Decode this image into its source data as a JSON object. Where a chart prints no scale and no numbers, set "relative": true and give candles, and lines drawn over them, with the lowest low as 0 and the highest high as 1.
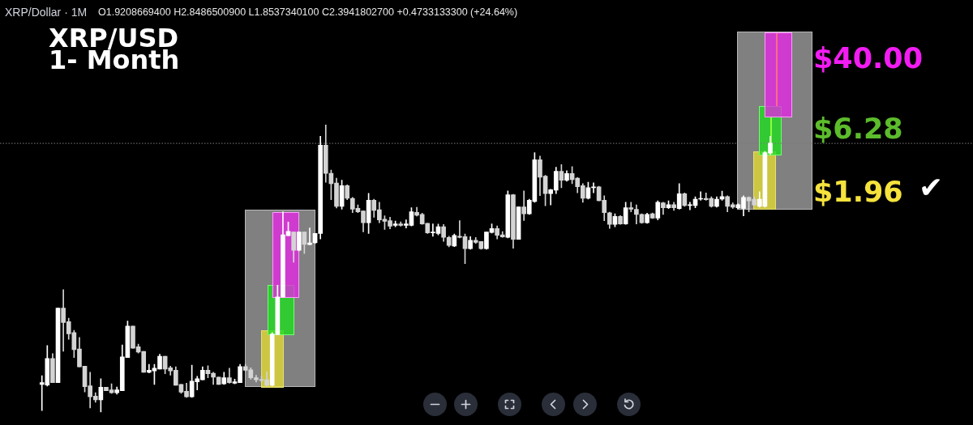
{
  "chart_data": {
    "type": "candlestick",
    "title": "XRP/USD",
    "subtitle": "1- Month",
    "annotations": [
      "XRP/Dollar · 1M",
      "O1.9208669400 H2.8486500900 L1.8537340100 C2.3941802700 +0.4733133300 (+24.64%)",
      "$40.00",
      "$6.28",
      "$1.96",
      "✔"
    ],
    "relative": true,
    "ref_lines": [
      {
        "axis": "y",
        "value": 0.935,
        "color": "#7a7a7a",
        "line_style": "dotted"
      }
    ],
    "categories": [
      null,
      null,
      null,
      null,
      null,
      null,
      null,
      null,
      null,
      null,
      null,
      null,
      null,
      null,
      null,
      null,
      null,
      null,
      null,
      null,
      null,
      null,
      null,
      null,
      null,
      null,
      null,
      null,
      null,
      null,
      null,
      null,
      null,
      null,
      null,
      null,
      null,
      null,
      null,
      null,
      null,
      null,
      null,
      null,
      null,
      null,
      null,
      null,
      null,
      null,
      null,
      null,
      null,
      null,
      null,
      null,
      null,
      null,
      null,
      null,
      null,
      null,
      null,
      null,
      null,
      null,
      null,
      null,
      null,
      null,
      null,
      null,
      null,
      null,
      null,
      null,
      null,
      null,
      null,
      null,
      null,
      null,
      null,
      null,
      null,
      null,
      null,
      null,
      null,
      null,
      null,
      null,
      null,
      null,
      null,
      null,
      null,
      null,
      null,
      null,
      null,
      null,
      null,
      null,
      null,
      null,
      null,
      null,
      null,
      null,
      null,
      null,
      null,
      null,
      null,
      null,
      null,
      null,
      null,
      null,
      null,
      null,
      null,
      null,
      null,
      null,
      null,
      null,
      null,
      null,
      null,
      null,
      null,
      null,
      null,
      null,
      null
    ],
    "colors": [
      "#ffffff",
      "#ffffff",
      "#d4d4d4",
      "#ffffff",
      "#d4d4d4",
      "#d4d4d4",
      "#d4d4d4",
      "#d4d4d4",
      "#d4d4d4",
      "#d4d4d4",
      "#d4d4d4",
      "#ffffff",
      "#d4d4d4",
      "#d4d4d4",
      "#ffffff",
      "#ffffff",
      "#ffffff",
      "#d4d4d4",
      "#d4d4d4",
      "#d4d4d4",
      "#ffffff",
      "#ffffff",
      "#ffffff",
      "#d4d4d4",
      "#d4d4d4",
      "#d4d4d4",
      "#d4d4d4",
      "#d4d4d4",
      "#ffffff",
      "#ffffff",
      "#ffffff",
      "#d4d4d4",
      "#d4d4d4",
      "#d4d4d4",
      "#ffffff",
      "#d4d4d4",
      "#ffffff",
      "#ffffff",
      "#d4d4d4",
      "#d4d4d4",
      "#d4d4d4",
      "#d4d4d4",
      "#d4d4d4",
      "#ffffff",
      "#ffffff",
      "#ffffff",
      "#ffffff",
      "#d4d4d4",
      "#ffffff",
      "#d4d4d4",
      "#ffffff",
      "#ffffff",
      "#ffffff",
      "#d4d4d4",
      "#d4d4d4",
      "#d4d4d4",
      "#ffffff",
      "#d4d4d4",
      "#d4d4d4",
      "#d4d4d4",
      "#d4d4d4",
      "#ffffff",
      "#d4d4d4",
      "#d4d4d4",
      "#d4d4d4",
      "#d4d4d4",
      "#ffffff",
      "#d4d4d4",
      "#ffffff",
      "#ffffff",
      "#d4d4d4",
      "#d4d4d4",
      "#d4d4d4",
      "#ffffff",
      "#ffffff",
      "#d4d4d4",
      "#d4d4d4",
      "#ffffff",
      "#d4d4d4",
      "#d4d4d4",
      "#ffffff",
      "#d4d4d4",
      "#d4d4d4",
      "#ffffff",
      "#ffffff",
      "#d4d4d4",
      "#d4d4d4",
      "#ffffff",
      "#d4d4d4",
      "#ffffff",
      "#d4d4d4",
      "#ffffff",
      "#ffffff",
      "#d4d4d4",
      "#d4d4d4",
      "#ffffff",
      "#ffffff",
      "#d4d4d4",
      "#ffffff",
      "#d4d4d4",
      "#d4d4d4",
      "#d4d4d4",
      "#ffffff",
      "#ffffff",
      "#d4d4d4",
      "#d4d4d4",
      "#d4d4d4",
      "#ffffff",
      "#d4d4d4",
      "#ffffff",
      "#d4d4d4",
      "#d4d4d4",
      "#d4d4d4",
      "#ffffff",
      "#d4d4d4",
      "#ffffff",
      "#d4d4d4",
      "#ffffff",
      "#d4d4d4",
      "#ffffff",
      "#d4d4d4",
      "#ffffff",
      "#ffffff",
      "#ffffff",
      "#d4d4d4",
      "#d4d4d4",
      "#ffffff",
      "#ffffff",
      "#d4d4d4",
      "#d4d4d4",
      "#ffffff",
      "#ffffff",
      "#d4d4d4",
      "#d4d4d4",
      "#ffffff",
      "#ffffff",
      "#ffffff"
    ],
    "ohlc": [
      [
        0.097,
        0.127,
        0.006,
        0.103
      ],
      [
        0.095,
        0.232,
        0.091,
        0.187
      ],
      [
        0.187,
        0.204,
        0.103,
        0.103
      ],
      [
        0.103,
        0.362,
        0.103,
        0.362
      ],
      [
        0.362,
        0.426,
        0.212,
        0.312
      ],
      [
        0.315,
        0.327,
        0.254,
        0.273
      ],
      [
        0.277,
        0.285,
        0.19,
        0.218
      ],
      [
        0.22,
        0.26,
        0.158,
        0.158
      ],
      [
        0.16,
        0.16,
        0.071,
        0.089
      ],
      [
        0.092,
        0.139,
        0.015,
        0.054
      ],
      [
        0.056,
        0.068,
        0.035,
        0.043
      ],
      [
        0.043,
        0.117,
        0,
        0.087
      ],
      [
        0.087,
        0.087,
        0.075,
        0.075
      ],
      [
        0.078,
        0.099,
        0.066,
        0.068
      ],
      [
        0.068,
        0.088,
        0.063,
        0.078
      ],
      [
        0.075,
        0.234,
        0.075,
        0.193
      ],
      [
        0.19,
        0.317,
        0.19,
        0.3
      ],
      [
        0.3,
        0.3,
        0.223,
        0.223
      ],
      [
        0.228,
        0.237,
        0.206,
        0.209
      ],
      [
        0.212,
        0.212,
        0.139,
        0.139
      ],
      [
        0.139,
        0.167,
        0.137,
        0.146
      ],
      [
        0.144,
        0.167,
        0.097,
        0.153
      ],
      [
        0.15,
        0.202,
        0.15,
        0.195
      ],
      [
        0.195,
        0.195,
        0.134,
        0.15
      ],
      [
        0.155,
        0.16,
        0.129,
        0.144
      ],
      [
        0.146,
        0.158,
        0.094,
        0.094
      ],
      [
        0.097,
        0.097,
        0.066,
        0.07
      ],
      [
        0.073,
        0.101,
        0.052,
        0.054
      ],
      [
        0.054,
        0.164,
        0.052,
        0.108
      ],
      [
        0.106,
        0.125,
        0.078,
        0.117
      ],
      [
        0.113,
        0.158,
        0.113,
        0.146
      ],
      [
        0.146,
        0.162,
        0.12,
        0.134
      ],
      [
        0.136,
        0.139,
        0.097,
        0.122
      ],
      [
        0.122,
        0.122,
        0.097,
        0.097
      ],
      [
        0.099,
        0.139,
        0.097,
        0.12
      ],
      [
        0.12,
        0.153,
        0.101,
        0.103
      ],
      [
        0.101,
        0.115,
        0.099,
        0.106
      ],
      [
        0.103,
        0.167,
        0.103,
        0.159
      ],
      [
        0.159,
        0.167,
        0.144,
        0.146
      ],
      [
        0.148,
        0.155,
        0.115,
        0.12
      ],
      [
        0.12,
        0.129,
        0.105,
        0.113
      ],
      [
        0.113,
        0.125,
        0.105,
        0.111
      ],
      [
        0.113,
        0.141,
        0.092,
        0.094
      ],
      [
        0.094,
        0.277,
        0.092,
        0.272
      ],
      [
        0.27,
        0.442,
        0.27,
        0.401
      ],
      [
        0.401,
        0.697,
        0.401,
        0.617
      ],
      [
        0.614,
        0.661,
        0.614,
        0.629
      ],
      [
        0.627,
        0.627,
        0.522,
        0.563
      ],
      [
        0.563,
        0.627,
        0.561,
        0.627
      ],
      [
        0.627,
        0.627,
        0.552,
        0.584
      ],
      [
        0.583,
        0.641,
        0.582,
        0.589
      ],
      [
        0.589,
        0.622,
        0.587,
        0.622
      ],
      [
        0.622,
        0.96,
        0.603,
        0.929
      ],
      [
        0.929,
        1,
        0.8,
        0.831
      ],
      [
        0.831,
        0.842,
        0.739,
        0.795
      ],
      [
        0.797,
        0.814,
        0.71,
        0.716
      ],
      [
        0.716,
        0.807,
        0.706,
        0.788
      ],
      [
        0.788,
        0.791,
        0.739,
        0.744
      ],
      [
        0.744,
        0.747,
        0.694,
        0.706
      ],
      [
        0.709,
        0.721,
        0.694,
        0.697
      ],
      [
        0.7,
        0.7,
        0.627,
        0.659
      ],
      [
        0.659,
        0.761,
        0.622,
        0.737
      ],
      [
        0.737,
        0.741,
        0.678,
        0.702
      ],
      [
        0.704,
        0.73,
        0.659,
        0.669
      ],
      [
        0.671,
        0.683,
        0.636,
        0.664
      ],
      [
        0.666,
        0.678,
        0.638,
        0.647
      ],
      [
        0.65,
        0.665,
        0.645,
        0.655
      ],
      [
        0.655,
        0.662,
        0.647,
        0.65
      ],
      [
        0.65,
        0.669,
        0.641,
        0.655
      ],
      [
        0.65,
        0.711,
        0.648,
        0.697
      ],
      [
        0.695,
        0.713,
        0.682,
        0.685
      ],
      [
        0.688,
        0.692,
        0.653,
        0.655
      ],
      [
        0.657,
        0.657,
        0.622,
        0.624
      ],
      [
        0.624,
        0.655,
        0.612,
        0.627
      ],
      [
        0.622,
        0.654,
        0.617,
        0.645
      ],
      [
        0.645,
        0.653,
        0.594,
        0.608
      ],
      [
        0.608,
        0.612,
        0.575,
        0.58
      ],
      [
        0.578,
        0.62,
        0.576,
        0.615
      ],
      [
        0.612,
        0.666,
        0.606,
        0.608
      ],
      [
        0.611,
        0.62,
        0.517,
        0.569
      ],
      [
        0.569,
        0.611,
        0.567,
        0.598
      ],
      [
        0.598,
        0.608,
        0.587,
        0.591
      ],
      [
        0.594,
        0.594,
        0.567,
        0.569
      ],
      [
        0.569,
        0.627,
        0.567,
        0.627
      ],
      [
        0.625,
        0.655,
        0.623,
        0.639
      ],
      [
        0.639,
        0.648,
        0.603,
        0.615
      ],
      [
        0.617,
        0.628,
        0.608,
        0.61
      ],
      [
        0.608,
        0.77,
        0.606,
        0.756
      ],
      [
        0.756,
        0.758,
        0.57,
        0.601
      ],
      [
        0.601,
        0.714,
        0.601,
        0.714
      ],
      [
        0.714,
        0.77,
        0.667,
        0.69
      ],
      [
        0.69,
        0.741,
        0.688,
        0.737
      ],
      [
        0.733,
        0.903,
        0.73,
        0.878
      ],
      [
        0.878,
        0.891,
        0.753,
        0.817
      ],
      [
        0.821,
        0.824,
        0.718,
        0.76
      ],
      [
        0.76,
        0.775,
        0.721,
        0.774
      ],
      [
        0.772,
        0.852,
        0.76,
        0.838
      ],
      [
        0.838,
        0.861,
        0.781,
        0.807
      ],
      [
        0.807,
        0.84,
        0.803,
        0.83
      ],
      [
        0.83,
        0.854,
        0.795,
        0.809
      ],
      [
        0.814,
        0.816,
        0.763,
        0.784
      ],
      [
        0.788,
        0.795,
        0.73,
        0.744
      ],
      [
        0.744,
        0.8,
        0.741,
        0.781
      ],
      [
        0.781,
        0.798,
        0.763,
        0.784
      ],
      [
        0.784,
        0.786,
        0.735,
        0.736
      ],
      [
        0.737,
        0.753,
        0.666,
        0.694
      ],
      [
        0.694,
        0.696,
        0.639,
        0.653
      ],
      [
        0.653,
        0.69,
        0.645,
        0.681
      ],
      [
        0.681,
        0.684,
        0.653,
        0.655
      ],
      [
        0.655,
        0.73,
        0.653,
        0.711
      ],
      [
        0.711,
        0.73,
        0.697,
        0.706
      ],
      [
        0.706,
        0.721,
        0.655,
        0.688
      ],
      [
        0.688,
        0.69,
        0.657,
        0.659
      ],
      [
        0.659,
        0.692,
        0.657,
        0.688
      ],
      [
        0.69,
        0.693,
        0.674,
        0.675
      ],
      [
        0.675,
        0.735,
        0.669,
        0.73
      ],
      [
        0.728,
        0.73,
        0.688,
        0.711
      ],
      [
        0.711,
        0.735,
        0.708,
        0.722
      ],
      [
        0.722,
        0.73,
        0.702,
        0.711
      ],
      [
        0.708,
        0.795,
        0.706,
        0.76
      ],
      [
        0.76,
        0.763,
        0.716,
        0.719
      ],
      [
        0.719,
        0.73,
        0.704,
        0.722
      ],
      [
        0.719,
        0.749,
        0.711,
        0.741
      ],
      [
        0.741,
        0.767,
        0.737,
        0.744
      ],
      [
        0.744,
        0.763,
        0.737,
        0.739
      ],
      [
        0.744,
        0.749,
        0.713,
        0.716
      ],
      [
        0.716,
        0.749,
        0.713,
        0.741
      ],
      [
        0.741,
        0.769,
        0.737,
        0.75
      ],
      [
        0.75,
        0.753,
        0.697,
        0.716
      ],
      [
        0.722,
        0.728,
        0.709,
        0.713
      ],
      [
        0.711,
        0.725,
        0.708,
        0.722
      ],
      [
        0.709,
        0.753,
        0.683,
        0.747
      ],
      [
        0.747,
        0.749,
        0.697,
        0.735
      ],
      [
        0.741,
        0.749,
        0.719,
        0.721
      ],
      [
        0.716,
        0.767,
        0.713,
        0.741
      ],
      [
        0.716,
        0.907,
        0.713,
        0.903
      ],
      [
        0.901,
        0.96,
        0.896,
        0.936
      ]
    ]
  }
}
